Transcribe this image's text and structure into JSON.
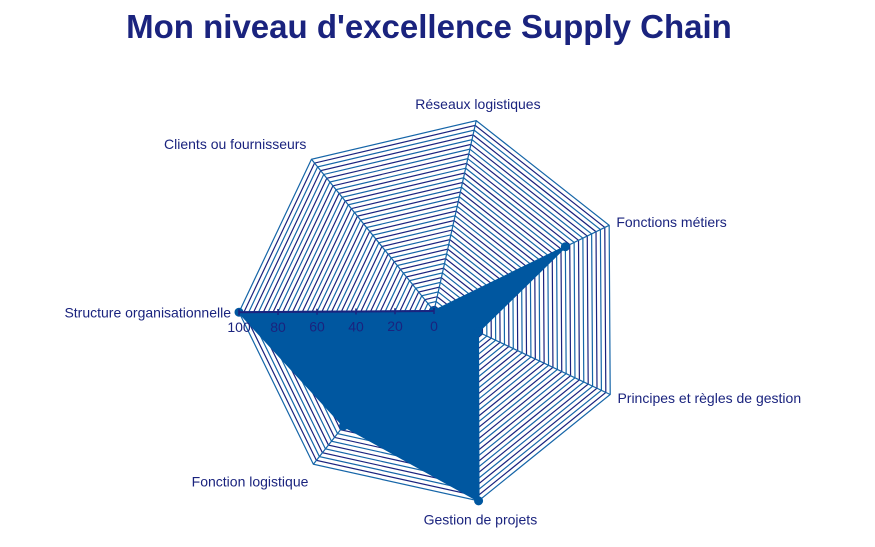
{
  "chart_data": {
    "type": "radar",
    "title": "Mon niveau d'excellence Supply Chain",
    "categories": [
      "Réseaux logistiques",
      "Fonctions métiers",
      "Principes et règles de gestion",
      "Gestion de projets",
      "Fonction logistique",
      "Structure organisationnelle",
      "Clients ou fournisseurs"
    ],
    "series": [
      {
        "values": [
          0,
          75,
          25,
          100,
          75,
          100,
          0
        ]
      }
    ],
    "rlim": [
      0,
      100
    ],
    "r_ticks": [
      0,
      20,
      40,
      60,
      80,
      100
    ],
    "r_tick_labels": [
      "0",
      "20",
      "40",
      "60",
      "80",
      "100"
    ],
    "grid": true
  },
  "colors": {
    "title": "#1a237e",
    "labels": "#1a237e",
    "grid_dark": "#1a237e",
    "grid_light": "#1565a8",
    "fill": "#0057a0",
    "marker": "#0057a0"
  }
}
